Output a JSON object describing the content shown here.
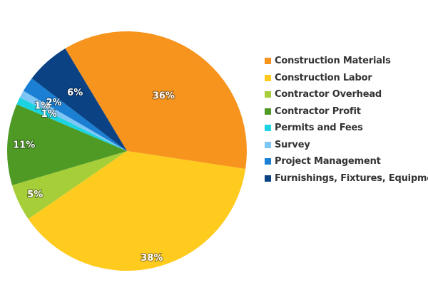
{
  "chart_data": {
    "type": "pie",
    "title": "",
    "legend_position": "right",
    "slices": [
      {
        "name": "Construction Materials",
        "value": 36,
        "label": "36%",
        "color": "#F7941D"
      },
      {
        "name": "Construction Labor",
        "value": 38,
        "label": "38%",
        "color": "#FFCB1F"
      },
      {
        "name": "Contractor Overhead",
        "value": 5,
        "label": "5%",
        "color": "#A6CE39"
      },
      {
        "name": "Contractor Profit",
        "value": 11,
        "label": "11%",
        "color": "#4E9A24"
      },
      {
        "name": "Permits and Fees",
        "value": 1,
        "label": "1%",
        "color": "#1CD3E2"
      },
      {
        "name": "Survey",
        "value": 1,
        "label": "1%",
        "color": "#7DC6F5"
      },
      {
        "name": "Project Management",
        "value": 2,
        "label": "2%",
        "color": "#1B7FD3"
      },
      {
        "name": "Furnishings, Fixtures, Equipment",
        "value": 6,
        "label": "6%",
        "color": "#0A4284"
      }
    ]
  }
}
